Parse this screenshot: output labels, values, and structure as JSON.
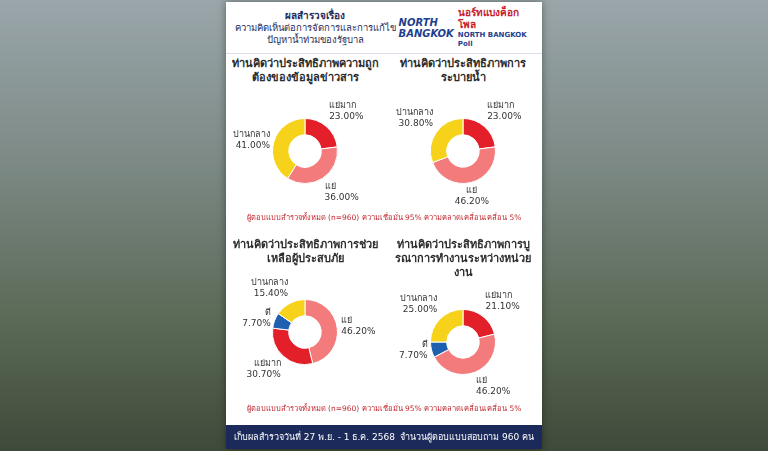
{
  "header": {
    "title_lines": [
      "ผลสำรวจเรื่อง",
      "ความคิดเห็นต่อการจัดการและการแก้ไข",
      "ปัญหาน้ำท่วมของรัฐบาล"
    ],
    "logo_en": [
      "NORTH",
      "BANGKOK"
    ],
    "logo_th": "นอร์ทแบงค็อกโพล",
    "logo_sub": "NORTH BANGKOK Poll"
  },
  "chart_data": [
    {
      "type": "doughnut",
      "title": "ท่านคิดว่าประสิทธิภาพความถูกต้องของข้อมูลข่าวสาร",
      "categories": [
        "แย่มาก",
        "แย่",
        "ปานกลาง"
      ],
      "values": [
        23,
        36,
        41
      ],
      "value_labels": [
        "23.00%",
        "36.00%",
        "41.00%"
      ],
      "colors": [
        "#e3202a",
        "#f37b7b",
        "#f6d21a"
      ],
      "data_labels": true
    },
    {
      "type": "doughnut",
      "title": "ท่านคิดว่าประสิทธิภาพการระบายน้ำ",
      "categories": [
        "แย่มาก",
        "แย่",
        "ปานกลาง"
      ],
      "values": [
        23,
        46.2,
        30.8
      ],
      "value_labels": [
        "23.00%",
        "46.20%",
        "30.80%"
      ],
      "colors": [
        "#e3202a",
        "#f37b7b",
        "#f6d21a"
      ],
      "data_labels": true
    },
    {
      "type": "doughnut",
      "title": "ท่านคิดว่าประสิทธิภาพการช่วยเหลือผู้ประสบภัย",
      "categories": [
        "แย่",
        "แย่มาก",
        "ดี",
        "ปานกลาง"
      ],
      "values": [
        46.2,
        30.7,
        7.7,
        15.4
      ],
      "value_labels": [
        "46.20%",
        "30.70%",
        "7.70%",
        "15.40%"
      ],
      "colors": [
        "#f37b7b",
        "#e3202a",
        "#1f5fb0",
        "#f6d21a"
      ],
      "data_labels": true
    },
    {
      "type": "doughnut",
      "title": "ท่านคิดว่าประสิทธิภาพการบูรณาการทำงานระหว่างหน่วยงาน",
      "categories": [
        "แย่มาก",
        "แย่",
        "ดี",
        "ปานกลาง"
      ],
      "values": [
        21.1,
        46.2,
        7.7,
        25
      ],
      "value_labels": [
        "21.10%",
        "46.20%",
        "7.70%",
        "25.00%"
      ],
      "colors": [
        "#e3202a",
        "#f37b7b",
        "#1f5fb0",
        "#f6d21a"
      ],
      "data_labels": true
    }
  ],
  "notes": [
    "ผู้ตอบแบบสำรวจทั้งหมด (n=960) ความเชื่อมั่น 95% ความคลาดเคลื่อนเคลื่อน 5%",
    "ผู้ตอบแบบสำรวจทั้งหมด (n=960) ความเชื่อมั่น 95% ความคลาดเคลื่อนเคลื่อน 5%"
  ],
  "footer": [
    "เก็บผลสำรวจวันที่ 27 พ.ย. - 1 ธ.ค. 2568",
    "จำนวนผู้ตอบแบบสอบถาม 960 คน"
  ]
}
